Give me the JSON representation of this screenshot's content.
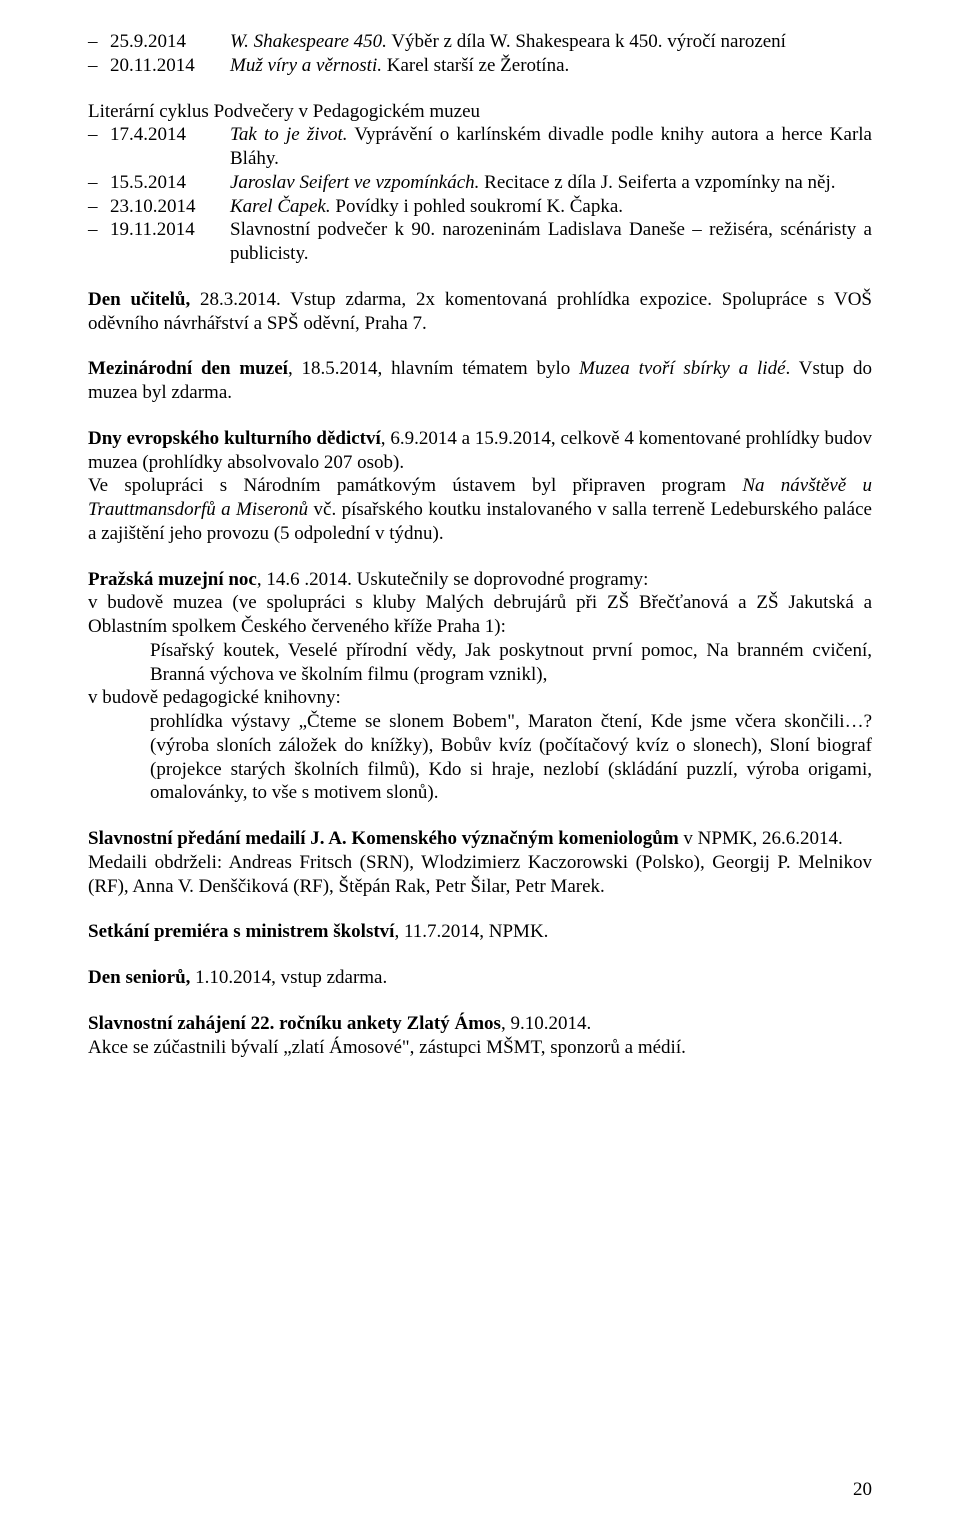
{
  "list_top": [
    {
      "date": "25.9.2014",
      "italic": "W. Shakespeare 450.",
      "plain": " Výběr z díla W. Shakespeara k 450. výročí narození"
    },
    {
      "date": "20.11.2014",
      "italic": "Muž víry a věrnosti.",
      "plain": " Karel starší ze Žerotína."
    }
  ],
  "heading1": "Literární cyklus Podvečery v Pedagogickém muzeu",
  "list2": [
    {
      "date": "17.4.2014",
      "italic": "Tak to je život.",
      "plain": " Vyprávění o karlínském divadle podle knihy autora a herce Karla Bláhy."
    },
    {
      "date": "15.5.2014",
      "italic": "Jaroslav Seifert ve vzpomínkách.",
      "plain": " Recitace z díla J. Seiferta a vzpomínky na něj."
    },
    {
      "date": "23.10.2014",
      "italic": "Karel Čapek.",
      "plain": " Povídky i pohled soukromí K. Čapka."
    },
    {
      "date": "19.11.2014",
      "italic": "",
      "plain": "Slavnostní podvečer k 90. narozeninám Ladislava Daneše – režiséra, scénáristy a publicisty."
    }
  ],
  "den_ucitelu": {
    "bold": "Den učitelů, ",
    "rest": "28.3.2014. Vstup zdarma, 2x komentovaná prohlídka expozice. Spolupráce s VOŠ oděvního návrhářství a SPŠ oděvní, Praha 7."
  },
  "mez_den": {
    "bold": "Mezinárodní den muzeí",
    "p1": ", 18.5.2014, hlavním tématem bylo ",
    "italic": "Muzea tvoří sbírky a lidé",
    "p2": ". Vstup do muzea byl zdarma."
  },
  "dny_evr": {
    "bold": "Dny evropského kulturního dědictví",
    "p1": ", 6.9.2014 a 15.9.2014, celkově 4 komentované prohlídky budov muzea (prohlídky absolvovalo 207 osob).",
    "p2a": "Ve spolupráci s Národním památkovým ústavem byl připraven program ",
    "it1": "Na návštěvě u Trauttmansdorfů a Miseronů",
    "p2b": " vč. písařského koutku instalovaného v salla terreně Ledeburského paláce a zajištění jeho provozu (5 odpolední v týdnu)."
  },
  "noc": {
    "bold": "Pražská muzejní noc",
    "p1": ", 14.6 .2014. Uskutečnily se doprovodné programy:",
    "line_mus": "v budově muzea (ve spolupráci s kluby Malých debrujárů při ZŠ Břečťanová a ZŠ Jakutská a Oblastním spolkem Českého červeného kříže Praha 1):",
    "ind1": "Písařský koutek, Veselé přírodní vědy, Jak poskytnout první pomoc, Na branném cvičení, Branná výchova ve školním filmu (program vznikl),",
    "line_kn": "v budově pedagogické knihovny:",
    "ind2": "prohlídka výstavy „Čteme se slonem Bobem\", Maraton čtení, Kde jsme včera skončili…? (výroba sloních záložek do knížky), Bobův kvíz (počítačový kvíz o slonech), Sloní biograf (projekce starých školních filmů), Kdo si hraje, nezlobí (skládání puzzlí, výroba origami, omalovánky, to vše s motivem slonů)."
  },
  "medaile": {
    "bold": "Slavnostní předání medailí J. A. Komenského význačným komeniologům ",
    "p1": "v NPMK, 26.6.2014.",
    "p2": "Medaili obdrželi: Andreas Fritsch (SRN), Wlodzimierz Kaczorowski (Polsko), Georgij P. Melnikov (RF), Anna V. Denščiková (RF), Štěpán Rak, Petr Šilar, Petr Marek."
  },
  "setkani": {
    "bold": "Setkání premiéra s ministrem školství",
    "rest": ", 11.7.2014, NPMK."
  },
  "den_sen": {
    "bold": "Den seniorů, ",
    "rest": "1.10.2014, vstup zdarma."
  },
  "zlaty": {
    "bold": "Slavnostní zahájení 22. ročníku ankety Zlatý Ámos",
    "p1": ", 9.10.2014.",
    "p2": "Akce se zúčastnili bývalí „zlatí Ámosové\", zástupci MŠMT, sponzorů a médií."
  },
  "page_number": "20",
  "dash": "–"
}
